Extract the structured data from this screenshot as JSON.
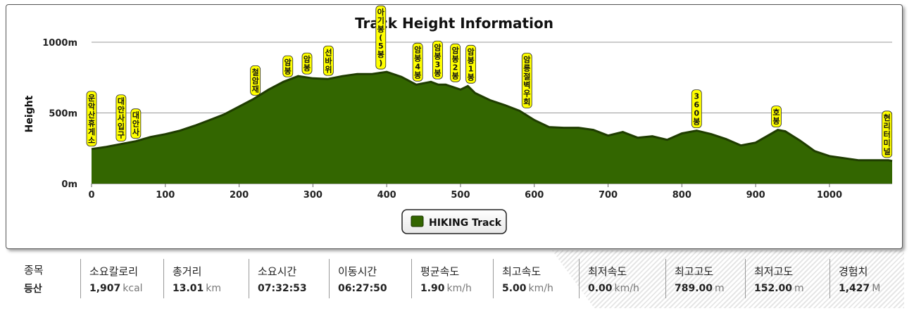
{
  "chart_data": {
    "type": "area",
    "title": "Track Height Information",
    "ylabel": "Height",
    "xlabel": "",
    "xlim": [
      0,
      1085
    ],
    "ylim": [
      0,
      1000
    ],
    "x_ticks": [
      0,
      100,
      200,
      300,
      400,
      500,
      600,
      700,
      800,
      900,
      1000
    ],
    "y_ticks": [
      {
        "value": 0,
        "label": "0m"
      },
      {
        "value": 500,
        "label": "500m"
      },
      {
        "value": 1000,
        "label": "1000m"
      }
    ],
    "grid": "horizontal",
    "legend": "bottom-center",
    "series": [
      {
        "name": "HIKING Track",
        "color": "#336600",
        "x": [
          0,
          20,
          40,
          60,
          80,
          100,
          120,
          140,
          160,
          180,
          200,
          220,
          240,
          260,
          280,
          300,
          320,
          340,
          360,
          380,
          400,
          420,
          440,
          460,
          470,
          480,
          500,
          510,
          520,
          540,
          560,
          580,
          600,
          620,
          640,
          660,
          680,
          700,
          720,
          740,
          760,
          780,
          800,
          820,
          840,
          860,
          880,
          900,
          920,
          930,
          940,
          960,
          980,
          1000,
          1020,
          1040,
          1060,
          1080,
          1085
        ],
        "values": [
          245,
          260,
          280,
          300,
          330,
          350,
          375,
          410,
          450,
          490,
          545,
          600,
          665,
          720,
          760,
          745,
          740,
          760,
          775,
          775,
          790,
          755,
          700,
          720,
          700,
          700,
          665,
          690,
          640,
          590,
          555,
          515,
          450,
          400,
          395,
          395,
          380,
          340,
          365,
          325,
          335,
          310,
          355,
          375,
          350,
          315,
          270,
          290,
          350,
          380,
          370,
          305,
          230,
          195,
          180,
          165,
          165,
          165,
          160
        ]
      }
    ],
    "annotations": [
      {
        "x": 0,
        "y": 245,
        "label": "운악산휴게소"
      },
      {
        "x": 40,
        "y": 280,
        "label": "대안사입구"
      },
      {
        "x": 60,
        "y": 300,
        "label": "대안사"
      },
      {
        "x": 222,
        "y": 605,
        "label": "철암재"
      },
      {
        "x": 266,
        "y": 735,
        "label": "암봉"
      },
      {
        "x": 292,
        "y": 755,
        "label": "암봉"
      },
      {
        "x": 321,
        "y": 745,
        "label": "선바위"
      },
      {
        "x": 392,
        "y": 790,
        "label": "아기봉(5봉)"
      },
      {
        "x": 442,
        "y": 705,
        "label": "암봉4봉"
      },
      {
        "x": 469,
        "y": 720,
        "label": "암봉3봉"
      },
      {
        "x": 493,
        "y": 700,
        "label": "암봉2봉"
      },
      {
        "x": 514,
        "y": 690,
        "label": "암봉1봉"
      },
      {
        "x": 590,
        "y": 515,
        "label": "암릉절벽우회"
      },
      {
        "x": 820,
        "y": 375,
        "label": "360봉"
      },
      {
        "x": 928,
        "y": 380,
        "label": "호봉"
      },
      {
        "x": 1078,
        "y": 165,
        "label": "현리터미널"
      }
    ]
  },
  "stats": [
    {
      "label": "종목",
      "value": "등산",
      "unit": ""
    },
    {
      "label": "소요칼로리",
      "value": "1,907",
      "unit": "kcal"
    },
    {
      "label": "총거리",
      "value": "13.01",
      "unit": "km"
    },
    {
      "label": "소요시간",
      "value": "07:32:53",
      "unit": ""
    },
    {
      "label": "이동시간",
      "value": "06:27:50",
      "unit": ""
    },
    {
      "label": "평균속도",
      "value": "1.90",
      "unit": "km/h"
    },
    {
      "label": "최고속도",
      "value": "5.00",
      "unit": "km/h"
    },
    {
      "label": "최저속도",
      "value": "0.00",
      "unit": "km/h"
    },
    {
      "label": "최고고도",
      "value": "789.00",
      "unit": "m"
    },
    {
      "label": "최저고도",
      "value": "152.00",
      "unit": "m"
    },
    {
      "label": "경험치",
      "value": "1,427",
      "unit": "M"
    }
  ]
}
